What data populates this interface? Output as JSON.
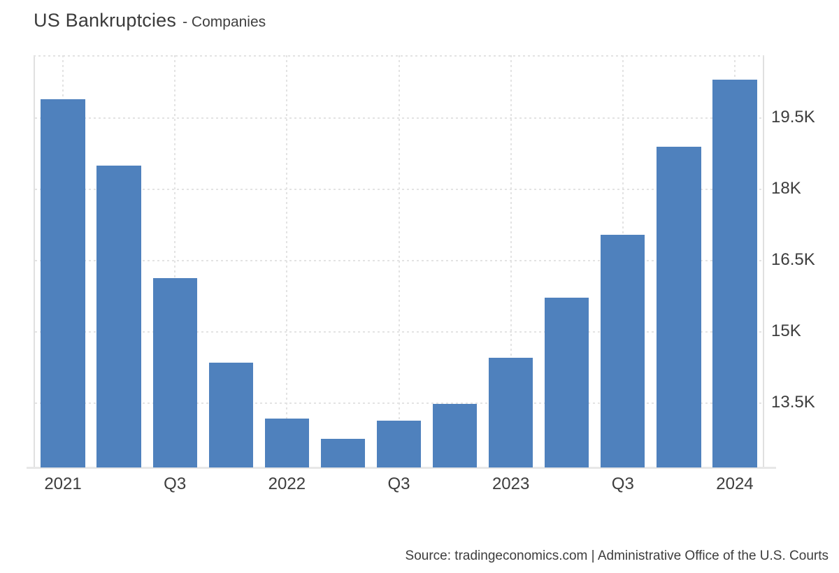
{
  "header": {
    "title": "US Bankruptcies",
    "subtitle": "- Companies"
  },
  "footer": {
    "source": "Source: tradingeconomics.com | Administrative Office of the U.S. Courts"
  },
  "colors": {
    "bar": "#4f81bd",
    "grid": "#e3e3e3",
    "plot_border": "#e0e0e0",
    "axis_baseline": "#e7e7e7",
    "title_text": "#3b3b3b",
    "axis_text": "#3d3d3d",
    "background": "#ffffff"
  },
  "chart_data": {
    "type": "bar",
    "title": "US Bankruptcies - Companies",
    "unit": "companies",
    "categories": [
      "2021-Q1",
      "2021-Q2",
      "2021-Q3",
      "2021-Q4",
      "2022-Q1",
      "2022-Q2",
      "2022-Q3",
      "2022-Q4",
      "2023-Q1",
      "2023-Q2",
      "2023-Q3",
      "2023-Q4",
      "2024-Q1"
    ],
    "values": [
      19880,
      18490,
      16120,
      14330,
      13160,
      12740,
      13120,
      13470,
      14440,
      15710,
      17030,
      18890,
      20290
    ],
    "x_tick_labels": [
      {
        "index": 0,
        "label": "2021"
      },
      {
        "index": 2,
        "label": "Q3"
      },
      {
        "index": 4,
        "label": "2022"
      },
      {
        "index": 6,
        "label": "Q3"
      },
      {
        "index": 8,
        "label": "2023"
      },
      {
        "index": 10,
        "label": "Q3"
      },
      {
        "index": 12,
        "label": "2024"
      }
    ],
    "y_ticks": [
      {
        "value": 13500,
        "label": "13.5K"
      },
      {
        "value": 15000,
        "label": "15K"
      },
      {
        "value": 16500,
        "label": "16.5K"
      },
      {
        "value": 18000,
        "label": "18K"
      },
      {
        "value": 19500,
        "label": "19.5K"
      }
    ],
    "ylim": [
      12130,
      20810
    ],
    "xlabel": "",
    "ylabel": "",
    "grid": true,
    "legend": false,
    "yaxis_side": "right"
  }
}
